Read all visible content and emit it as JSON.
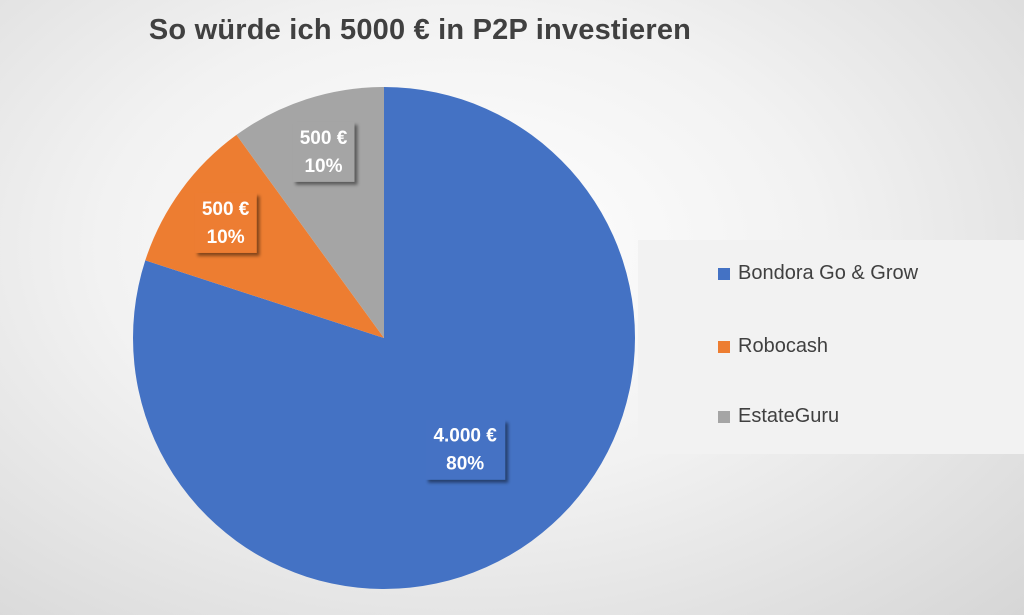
{
  "chart_data": {
    "type": "pie",
    "title": "So würde ich 5000 € in P2P investieren",
    "legend_position": "right",
    "categories": [
      "Bondora Go & Grow",
      "Robocash",
      "EstateGuru"
    ],
    "values": [
      4000,
      500,
      500
    ],
    "data_labels": [
      {
        "value": "4.000 €",
        "percent": "80%"
      },
      {
        "value": "500 €",
        "percent": "10%"
      },
      {
        "value": "500 €",
        "percent": "10%"
      }
    ],
    "colors": [
      "#4472C4",
      "#ED7D31",
      "#A5A5A5"
    ]
  }
}
